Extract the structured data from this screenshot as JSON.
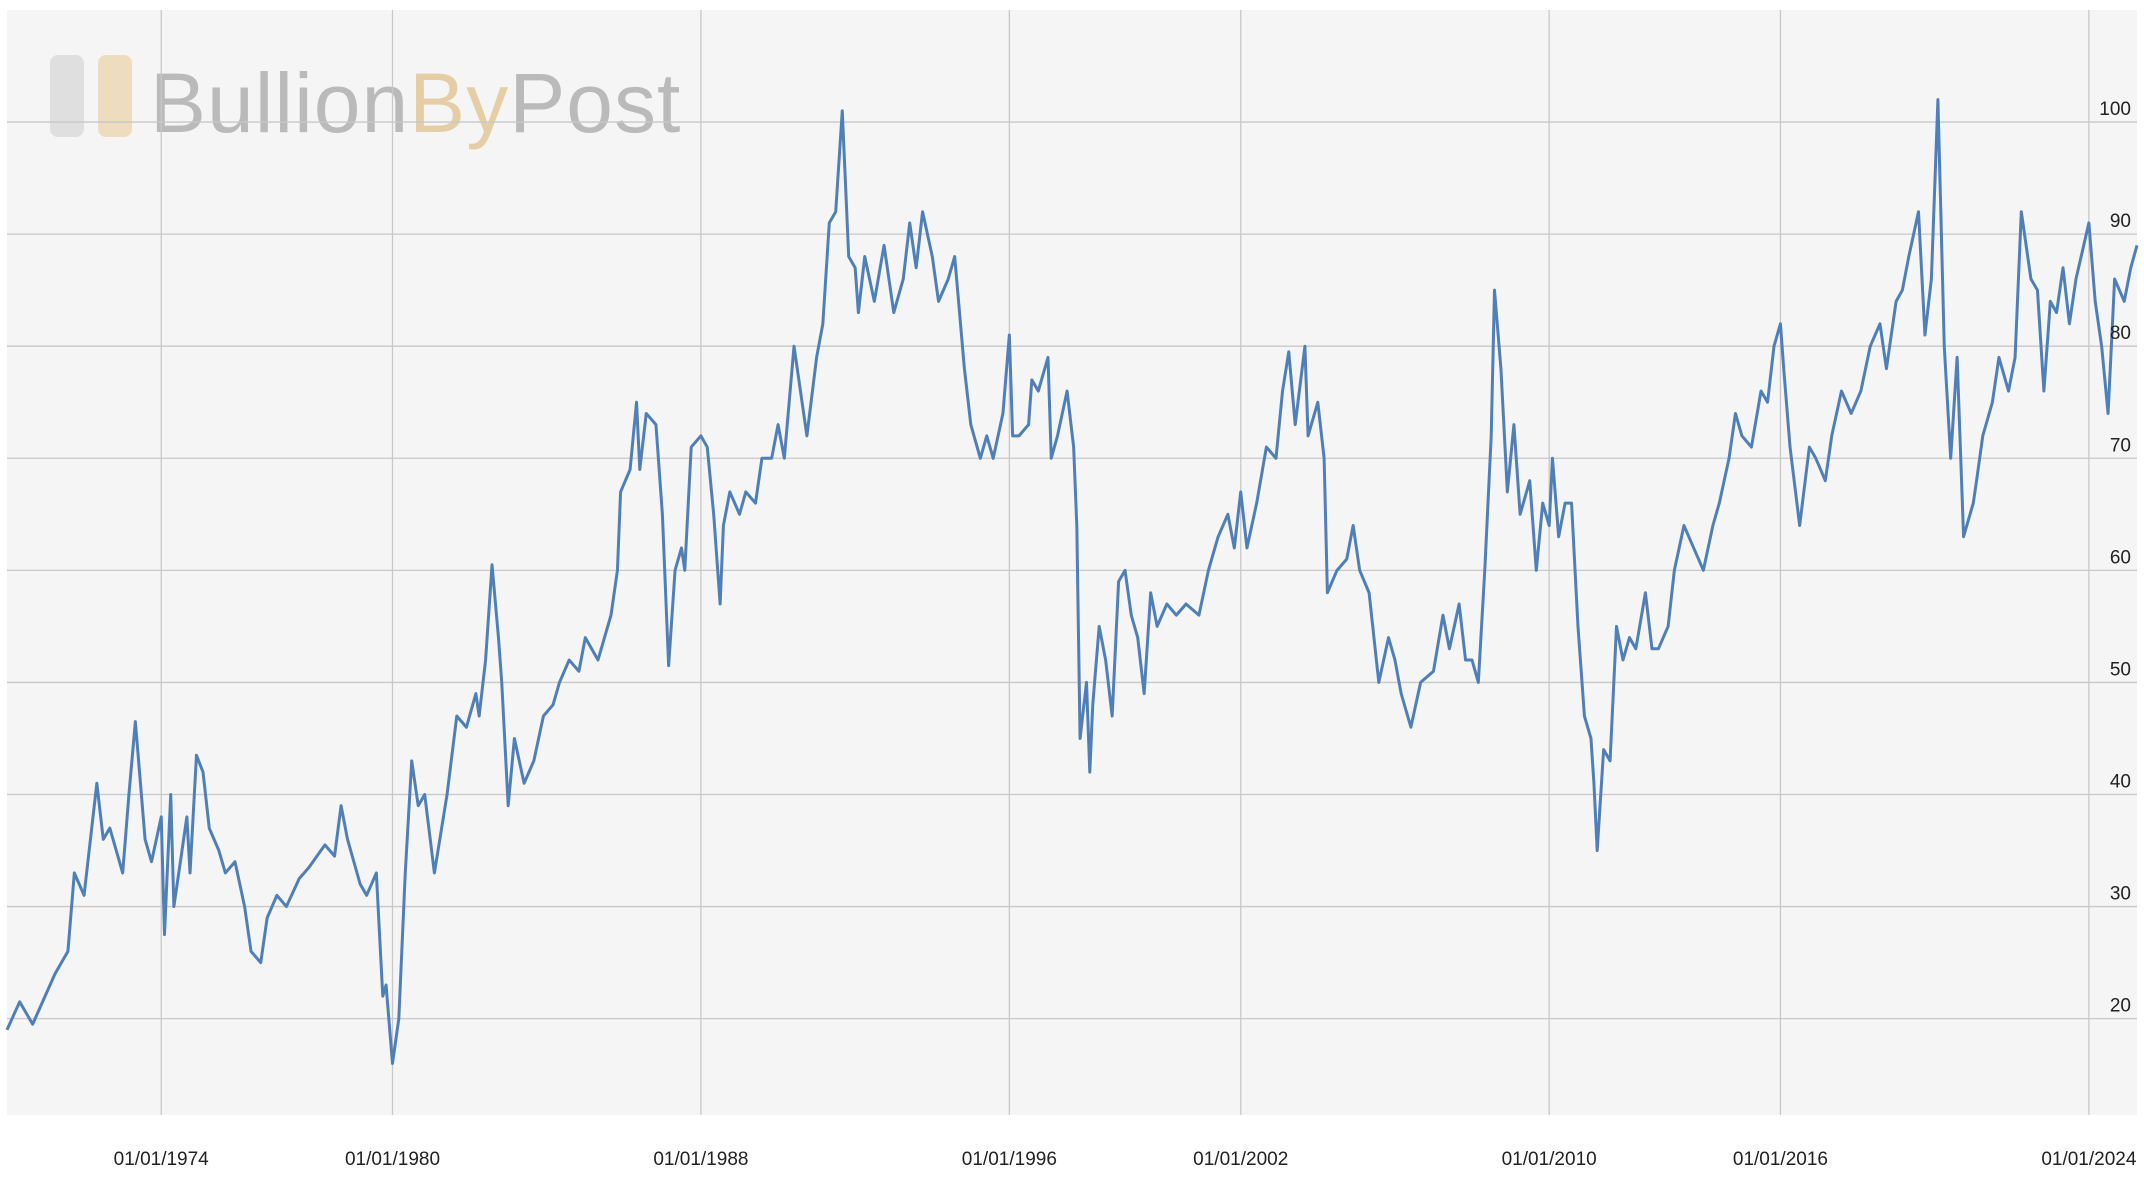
{
  "chart_data": {
    "type": "line",
    "watermark": [
      "Bullion",
      "By",
      "Post"
    ],
    "grid": true,
    "xlim": [
      "1970-01-01",
      "2025-04-01"
    ],
    "xticks": [
      {
        "value": "1974-01-01",
        "label": "01/01/1974"
      },
      {
        "value": "1980-01-01",
        "label": "01/01/1980"
      },
      {
        "value": "1988-01-01",
        "label": "01/01/1988"
      },
      {
        "value": "1996-01-01",
        "label": "01/01/1996"
      },
      {
        "value": "2002-01-01",
        "label": "01/01/2002"
      },
      {
        "value": "2010-01-01",
        "label": "01/01/2010"
      },
      {
        "value": "2016-01-01",
        "label": "01/01/2016"
      },
      {
        "value": "2024-01-01",
        "label": "01/01/2024"
      }
    ],
    "ylim": [
      11.4,
      110
    ],
    "yticks": [
      20,
      30,
      40,
      50,
      60,
      70,
      80,
      90,
      100
    ],
    "x": [
      "1970-01-01",
      "1970-05-01",
      "1970-09-01",
      "1971-04-01",
      "1971-08-01",
      "1971-10-01",
      "1972-01-01",
      "1972-05-01",
      "1972-07-01",
      "1972-09-01",
      "1973-01-01",
      "1973-03-01",
      "1973-05-01",
      "1973-08-01",
      "1973-10-01",
      "1974-01-01",
      "1974-02-01",
      "1974-04-01",
      "1974-05-01",
      "1974-09-01",
      "1974-10-01",
      "1974-12-01",
      "1975-02-01",
      "1975-04-01",
      "1975-07-01",
      "1975-09-01",
      "1975-12-01",
      "1976-03-01",
      "1976-05-01",
      "1976-08-01",
      "1976-10-01",
      "1977-01-01",
      "1977-04-01",
      "1977-08-01",
      "1977-11-01",
      "1978-04-01",
      "1978-07-01",
      "1978-09-01",
      "1978-11-01",
      "1979-03-01",
      "1979-05-01",
      "1979-08-01",
      "1979-10-01",
      "1979-11-01",
      "1980-01-01",
      "1980-03-01",
      "1980-05-01",
      "1980-07-01",
      "1980-09-01",
      "1980-11-01",
      "1981-02-01",
      "1981-06-01",
      "1981-09-01",
      "1981-12-01",
      "1982-03-01",
      "1982-04-01",
      "1982-06-01",
      "1982-08-01",
      "1982-10-01",
      "1982-11-01",
      "1983-01-01",
      "1983-03-01",
      "1983-06-01",
      "1983-09-01",
      "1983-12-01",
      "1984-03-01",
      "1984-05-01",
      "1984-08-01",
      "1984-11-01",
      "1985-01-01",
      "1985-05-01",
      "1985-09-01",
      "1985-11-01",
      "1985-12-01",
      "1986-03-01",
      "1986-05-01",
      "1986-06-01",
      "1986-08-01",
      "1986-11-01",
      "1987-01-01",
      "1987-03-01",
      "1987-05-01",
      "1987-07-01",
      "1987-08-01",
      "1987-10-01",
      "1988-01-01",
      "1988-03-01",
      "1988-05-01",
      "1988-07-01",
      "1988-08-01",
      "1988-10-01",
      "1989-01-01",
      "1989-03-01",
      "1989-06-01",
      "1989-08-01",
      "1989-11-01",
      "1990-01-01",
      "1990-03-01",
      "1990-06-01",
      "1990-08-01",
      "1990-10-01",
      "1991-01-01",
      "1991-03-01",
      "1991-05-01",
      "1991-07-01",
      "1991-09-01",
      "1991-11-01",
      "1992-01-01",
      "1992-02-01",
      "1992-04-01",
      "1992-07-01",
      "1992-10-01",
      "1993-01-01",
      "1993-04-01",
      "1993-06-01",
      "1993-08-01",
      "1993-10-01",
      "1994-01-01",
      "1994-03-01",
      "1994-06-01",
      "1994-08-01",
      "1994-11-01",
      "1995-01-01",
      "1995-04-01",
      "1995-06-01",
      "1995-08-01",
      "1995-11-01",
      "1996-01-01",
      "1996-02-01",
      "1996-04-01",
      "1996-07-01",
      "1996-08-01",
      "1996-10-01",
      "1997-01-01",
      "1997-02-01",
      "1997-04-01",
      "1997-07-01",
      "1997-09-01",
      "1997-10-01",
      "1997-11-01",
      "1998-01-01",
      "1998-02-01",
      "1998-03-01",
      "1998-05-01",
      "1998-07-01",
      "1998-09-01",
      "1998-11-01",
      "1999-01-01",
      "1999-03-01",
      "1999-05-01",
      "1999-07-01",
      "1999-09-01",
      "1999-11-01",
      "2000-02-01",
      "2000-05-01",
      "2000-08-01",
      "2000-12-01",
      "2001-03-01",
      "2001-06-01",
      "2001-09-01",
      "2001-11-01",
      "2002-01-01",
      "2002-03-01",
      "2002-06-01",
      "2002-09-01",
      "2002-12-01",
      "2003-02-01",
      "2003-04-01",
      "2003-06-01",
      "2003-09-01",
      "2003-10-01",
      "2004-01-01",
      "2004-03-01",
      "2004-04-01",
      "2004-07-01",
      "2004-10-01",
      "2004-12-01",
      "2005-02-01",
      "2005-05-01",
      "2005-08-01",
      "2005-11-01",
      "2006-01-01",
      "2006-03-01",
      "2006-06-01",
      "2006-09-01",
      "2007-01-01",
      "2007-04-01",
      "2007-06-01",
      "2007-09-01",
      "2007-11-01",
      "2008-01-01",
      "2008-03-01",
      "2008-05-01",
      "2008-07-01",
      "2008-08-01",
      "2008-10-01",
      "2008-12-01",
      "2009-02-01",
      "2009-04-01",
      "2009-07-01",
      "2009-09-01",
      "2009-11-01",
      "2010-01-01",
      "2010-02-01",
      "2010-04-01",
      "2010-06-01",
      "2010-08-01",
      "2010-10-01",
      "2010-12-01",
      "2011-02-01",
      "2011-03-01",
      "2011-04-01",
      "2011-06-01",
      "2011-08-01",
      "2011-10-01",
      "2011-12-01",
      "2012-02-01",
      "2012-04-01",
      "2012-07-01",
      "2012-09-01",
      "2012-11-01",
      "2013-02-01",
      "2013-04-01",
      "2013-07-01",
      "2013-10-01",
      "2014-01-01",
      "2014-04-01",
      "2014-06-01",
      "2014-09-01",
      "2014-11-01",
      "2015-01-01",
      "2015-04-01",
      "2015-07-01",
      "2015-09-01",
      "2015-11-01",
      "2016-01-01",
      "2016-02-01",
      "2016-04-01",
      "2016-07-01",
      "2016-10-01",
      "2016-12-01",
      "2017-03-01",
      "2017-05-01",
      "2017-08-01",
      "2017-11-01",
      "2018-02-01",
      "2018-05-01",
      "2018-08-01",
      "2018-10-01",
      "2019-01-01",
      "2019-03-01",
      "2019-05-01",
      "2019-08-01",
      "2019-10-01",
      "2019-12-01",
      "2020-02-01",
      "2020-04-01",
      "2020-06-01",
      "2020-08-01",
      "2020-10-01",
      "2021-01-01",
      "2021-02-01",
      "2021-04-01",
      "2021-07-01",
      "2021-09-01",
      "2021-12-01",
      "2022-02-01",
      "2022-04-01",
      "2022-07-01",
      "2022-09-01",
      "2022-11-01",
      "2023-01-01",
      "2023-03-01",
      "2023-05-01",
      "2023-07-01",
      "2023-09-01",
      "2024-01-01",
      "2024-03-01",
      "2024-05-01",
      "2024-07-01",
      "2024-09-01",
      "2024-12-01",
      "2025-02-01",
      "2025-04-01"
    ],
    "series": [
      {
        "color": "#4f7fb8",
        "values": [
          19,
          21.5,
          19.5,
          24,
          26,
          33,
          31,
          41,
          36,
          37,
          33,
          40,
          46.5,
          36,
          34,
          38,
          27.5,
          40,
          30,
          38,
          33,
          43.5,
          42,
          37,
          35,
          33,
          34,
          30,
          26,
          25,
          29,
          31,
          30,
          32.5,
          33.5,
          35.5,
          34.5,
          39,
          36,
          32,
          31,
          33,
          22,
          23,
          16,
          20,
          33,
          43,
          39,
          40,
          33,
          40,
          47,
          46,
          49,
          47,
          52,
          60.5,
          54,
          50,
          39,
          45,
          41,
          43,
          47,
          48,
          50,
          52,
          51,
          54,
          52,
          56,
          60,
          67,
          69,
          75,
          69,
          74,
          73,
          65,
          51.5,
          60,
          62,
          60,
          71,
          72,
          71,
          65,
          57,
          64,
          67,
          65,
          67,
          66,
          70,
          70,
          73,
          70,
          80,
          76,
          72,
          79,
          82,
          91,
          92,
          101,
          88,
          87,
          83,
          88,
          84,
          89,
          83,
          86,
          91,
          87,
          92,
          88,
          84,
          86,
          88,
          78,
          73,
          70,
          72,
          70,
          74,
          81,
          72,
          72,
          73,
          77,
          76,
          79,
          70,
          72,
          76,
          71,
          64,
          45,
          50,
          42,
          48,
          55,
          52,
          47,
          59,
          60,
          56,
          54,
          49,
          58,
          55,
          57,
          56,
          57,
          56,
          60,
          63,
          65,
          62,
          67,
          62,
          66,
          71,
          70,
          76,
          79.5,
          73,
          80,
          72,
          75,
          70,
          58,
          60,
          61,
          64,
          60,
          58,
          50,
          54,
          52,
          49,
          46,
          50,
          51,
          56,
          53,
          57,
          52,
          52,
          50,
          60,
          72,
          85,
          78,
          67,
          73,
          65,
          68,
          60,
          66,
          64,
          70,
          63,
          66,
          66,
          55,
          47,
          45,
          41,
          35,
          44,
          43,
          55,
          52,
          54,
          53,
          58,
          53,
          53,
          55,
          60,
          64,
          62,
          60,
          64,
          66,
          70,
          74,
          72,
          71,
          76,
          75,
          80,
          82,
          78,
          71,
          64,
          71,
          70,
          68,
          72,
          76,
          74,
          76,
          80,
          82,
          78,
          84,
          85,
          88,
          92,
          81,
          86,
          102,
          80,
          70,
          79,
          63,
          66,
          68,
          72,
          75,
          79,
          76,
          79,
          92,
          86,
          85,
          76,
          84,
          83,
          87,
          82,
          86,
          91,
          84,
          80,
          74,
          86,
          84,
          87,
          89
        ]
      }
    ]
  }
}
